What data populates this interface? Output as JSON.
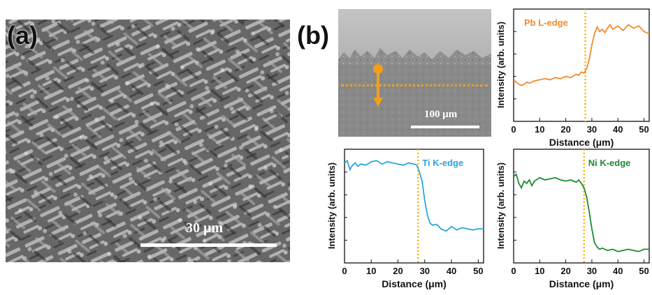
{
  "figure": {
    "panel_a_label": "(a)",
    "panel_b_label": "(b)",
    "sem_a_scale_label": "30 μm",
    "sem_b_scale_label": "100 μm",
    "marker_color": "#f0a01c"
  },
  "chart_data": [
    {
      "type": "line",
      "name": "pb",
      "annotation": "Pb L-edge",
      "color": "#f08a2c",
      "xlabel": "Distance (μm)",
      "ylabel": "Intensity (arb. units)",
      "xlim": [
        0,
        52
      ],
      "ylim": [
        0,
        1
      ],
      "xticks": [
        0,
        10,
        20,
        30,
        40,
        50
      ],
      "xtick_labels": [
        "0",
        "10",
        "20",
        "30",
        "40",
        "50"
      ],
      "vline_x": 27.5,
      "x": [
        0,
        1,
        2,
        3,
        4,
        5,
        6,
        8,
        10,
        12,
        14,
        16,
        18,
        20,
        22,
        24,
        25,
        26,
        27,
        28,
        29,
        30,
        31,
        32,
        33,
        34,
        35,
        36,
        37,
        38,
        40,
        42,
        44,
        46,
        48,
        50,
        52
      ],
      "y": [
        0.37,
        0.35,
        0.33,
        0.32,
        0.33,
        0.35,
        0.34,
        0.36,
        0.37,
        0.38,
        0.37,
        0.39,
        0.38,
        0.4,
        0.39,
        0.42,
        0.41,
        0.44,
        0.43,
        0.47,
        0.55,
        0.68,
        0.78,
        0.84,
        0.8,
        0.82,
        0.79,
        0.83,
        0.86,
        0.82,
        0.85,
        0.81,
        0.86,
        0.83,
        0.85,
        0.8,
        0.78
      ]
    },
    {
      "type": "line",
      "name": "ti",
      "annotation": "Ti K-edge",
      "color": "#29a6dd",
      "xlabel": "Distance (μm)",
      "ylabel": "Intensity (arb. units)",
      "xlim": [
        0,
        52
      ],
      "ylim": [
        0,
        1
      ],
      "xticks": [
        0,
        10,
        20,
        30,
        40,
        50
      ],
      "xtick_labels": [
        "0",
        "10",
        "20",
        "30",
        "40",
        "50"
      ],
      "vline_x": 27.5,
      "x": [
        0,
        1,
        2,
        3,
        4,
        5,
        6,
        8,
        10,
        12,
        14,
        16,
        18,
        20,
        22,
        24,
        26,
        27,
        28,
        29,
        30,
        31,
        32,
        33,
        34,
        35,
        36,
        38,
        40,
        42,
        44,
        46,
        48,
        50,
        52
      ],
      "y": [
        0.88,
        0.9,
        0.82,
        0.86,
        0.88,
        0.85,
        0.87,
        0.86,
        0.89,
        0.9,
        0.87,
        0.89,
        0.88,
        0.87,
        0.86,
        0.88,
        0.87,
        0.86,
        0.8,
        0.72,
        0.55,
        0.42,
        0.35,
        0.33,
        0.34,
        0.33,
        0.3,
        0.28,
        0.32,
        0.29,
        0.31,
        0.3,
        0.29,
        0.3,
        0.3
      ]
    },
    {
      "type": "line",
      "name": "ni",
      "annotation": "Ni K-edge",
      "color": "#1e8a30",
      "xlabel": "Distance (μm)",
      "ylabel": "Intensity (arb. units)",
      "xlim": [
        0,
        52
      ],
      "ylim": [
        0,
        1
      ],
      "xticks": [
        0,
        10,
        20,
        30,
        40,
        50
      ],
      "xtick_labels": [
        "0",
        "10",
        "20",
        "30",
        "40",
        "50"
      ],
      "vline_x": 27.0,
      "x": [
        0,
        1,
        2,
        3,
        4,
        5,
        6,
        7,
        8,
        10,
        12,
        14,
        16,
        18,
        20,
        22,
        24,
        25,
        26,
        27,
        28,
        29,
        30,
        31,
        32,
        33,
        34,
        36,
        38,
        40,
        42,
        44,
        46,
        48,
        50,
        52
      ],
      "y": [
        0.76,
        0.78,
        0.7,
        0.66,
        0.72,
        0.7,
        0.73,
        0.68,
        0.72,
        0.75,
        0.73,
        0.74,
        0.75,
        0.73,
        0.72,
        0.73,
        0.71,
        0.73,
        0.7,
        0.66,
        0.58,
        0.45,
        0.3,
        0.18,
        0.14,
        0.12,
        0.13,
        0.11,
        0.12,
        0.1,
        0.11,
        0.12,
        0.11,
        0.1,
        0.12,
        0.12
      ]
    }
  ]
}
